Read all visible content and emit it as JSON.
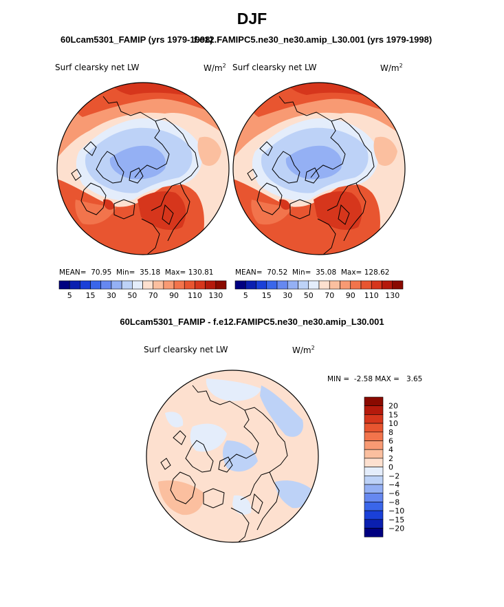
{
  "page_title": "DJF",
  "header": {
    "left_subtitle": "60Lcam5301_FAMIP (yrs 1979-1998)",
    "right_subtitle": "f.e12.FAMIPC5.ne30_ne30.amip_L30.001 (yrs 1979-1998)",
    "diff_title": "60Lcam5301_FAMIP - f.e12.FAMIPC5.ne30_ne30.amip_L30.001"
  },
  "colors": {
    "ocean_warm": "#e85530",
    "arctic_cool": "#a8c6f4",
    "coastline": "#000000"
  },
  "chart_data": [
    {
      "type": "polar-contour-map",
      "id": "left",
      "variable": "Surf clearsky net LW",
      "units": "W/m",
      "units_exp": "2",
      "stats": {
        "mean_label": "MEAN=",
        "mean": "70.95",
        "min_label": "Min=",
        "min": "35.18",
        "max_label": "Max=",
        "max": "130.81"
      },
      "levels": [
        5,
        15,
        30,
        50,
        70,
        90,
        110,
        130
      ],
      "level_labels": [
        "5",
        "15",
        "30",
        "50",
        "70",
        "90",
        "110",
        "130"
      ],
      "bins": [
        "#000080",
        "#0a1fb0",
        "#1a40d8",
        "#3a66ea",
        "#6688f0",
        "#94b0f4",
        "#bdd2f7",
        "#e4edfb",
        "#fde0cf",
        "#fbbf9f",
        "#f89a73",
        "#f2744c",
        "#e85530",
        "#d6361c",
        "#b51a0c",
        "#8a0a00"
      ]
    },
    {
      "type": "polar-contour-map",
      "id": "right",
      "variable": "Surf clearsky net LW",
      "units": "W/m",
      "units_exp": "2",
      "stats": {
        "mean_label": "MEAN=",
        "mean": "70.52",
        "min_label": "Min=",
        "min": "35.08",
        "max_label": "Max=",
        "max": "128.62"
      },
      "levels": [
        5,
        15,
        30,
        50,
        70,
        90,
        110,
        130
      ],
      "level_labels": [
        "5",
        "15",
        "30",
        "50",
        "70",
        "90",
        "110",
        "130"
      ],
      "bins": [
        "#000080",
        "#0a1fb0",
        "#1a40d8",
        "#3a66ea",
        "#6688f0",
        "#94b0f4",
        "#bdd2f7",
        "#e4edfb",
        "#fde0cf",
        "#fbbf9f",
        "#f89a73",
        "#f2744c",
        "#e85530",
        "#d6361c",
        "#b51a0c",
        "#8a0a00"
      ]
    },
    {
      "type": "polar-contour-map",
      "id": "difference",
      "variable": "Surf clearsky net LW",
      "units": "W/m",
      "units_exp": "2",
      "stats": {
        "min_label": "MIN =",
        "min": "-2.58",
        "max_label": "MAX =",
        "max": "3.65"
      },
      "levels": [
        20,
        15,
        10,
        8,
        6,
        4,
        2,
        0,
        -2,
        -4,
        -6,
        -8,
        -10,
        -15,
        -20
      ],
      "level_labels": [
        "20",
        "15",
        "10",
        "8",
        "6",
        "4",
        "2",
        "0",
        "−2",
        "−4",
        "−6",
        "−8",
        "−10",
        "−15",
        "−20"
      ],
      "bins": [
        "#8a0a00",
        "#b51a0c",
        "#d6361c",
        "#e85530",
        "#f2744c",
        "#f89a73",
        "#fbbf9f",
        "#fde0cf",
        "#e4edfb",
        "#bdd2f7",
        "#94b0f4",
        "#6688f0",
        "#3a66ea",
        "#1a40d8",
        "#0a1fb0",
        "#000080"
      ]
    }
  ]
}
